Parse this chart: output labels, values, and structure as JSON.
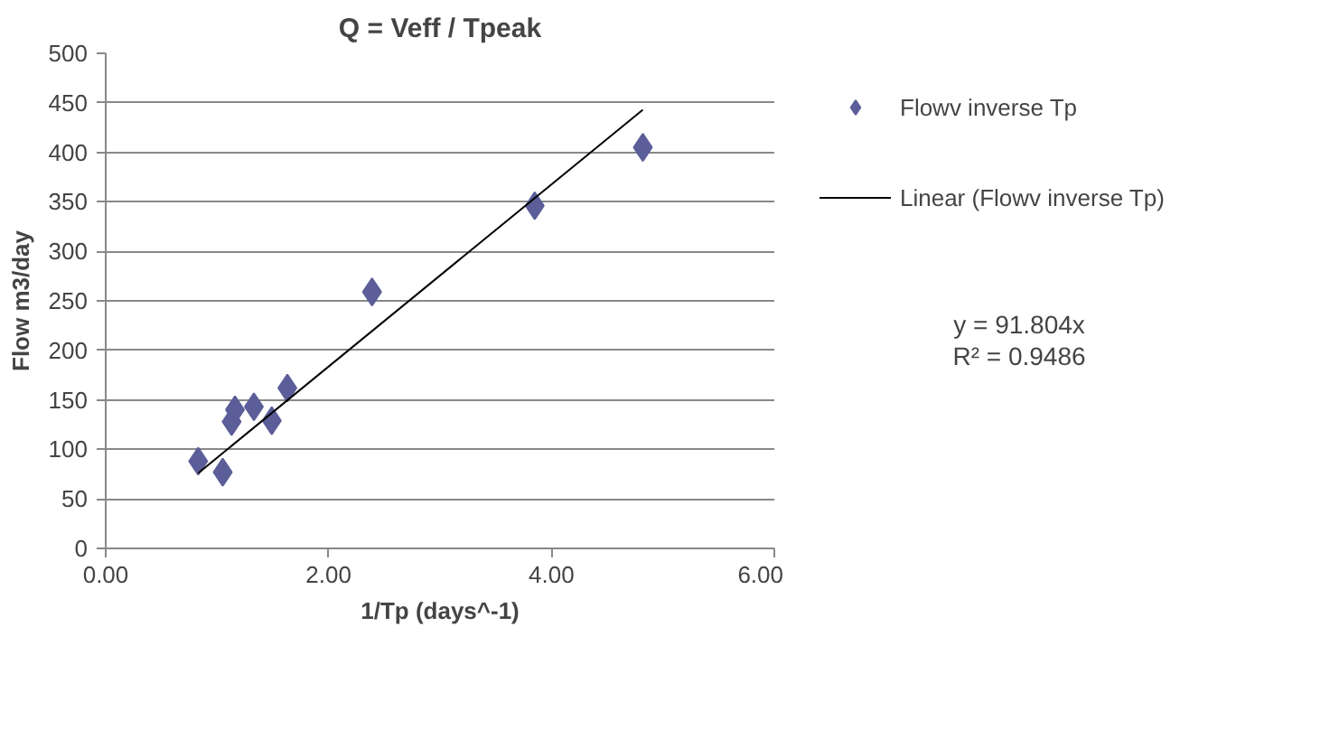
{
  "chart_data": {
    "type": "scatter",
    "title": "Q = Veff / Tpeak",
    "xlabel": "1/Tp (days^-1)",
    "ylabel": "Flow m3/day",
    "series": [
      {
        "name": "Flowv inverse Tp",
        "color": "#5b5e99",
        "marker": "diamond",
        "x": [
          0.83,
          1.05,
          1.13,
          1.16,
          1.33,
          1.49,
          1.63,
          2.39,
          3.85,
          4.82
        ],
        "values": [
          88,
          77,
          128,
          140,
          143,
          129,
          162,
          259,
          346,
          405
        ]
      },
      {
        "name": "Linear (Flowv inverse Tp)",
        "type": "line",
        "color": "#000000",
        "marker": "none",
        "line_style": "solid",
        "x": [
          0.83,
          4.82
        ],
        "values": [
          76,
          443
        ]
      }
    ],
    "xlim": [
      0,
      6
    ],
    "xticks": [
      {
        "value": 0,
        "label": "0.00"
      },
      {
        "value": 2,
        "label": "2.00"
      },
      {
        "value": 4,
        "label": "4.00"
      },
      {
        "value": 6,
        "label": "6.00"
      }
    ],
    "ylim": [
      0,
      500
    ],
    "yticks": [
      0,
      50,
      100,
      150,
      200,
      250,
      300,
      350,
      400,
      450,
      500
    ],
    "grid": "y",
    "legend": "right",
    "annotations": [
      "y = 91.804x",
      "R² = 0.9486"
    ]
  }
}
